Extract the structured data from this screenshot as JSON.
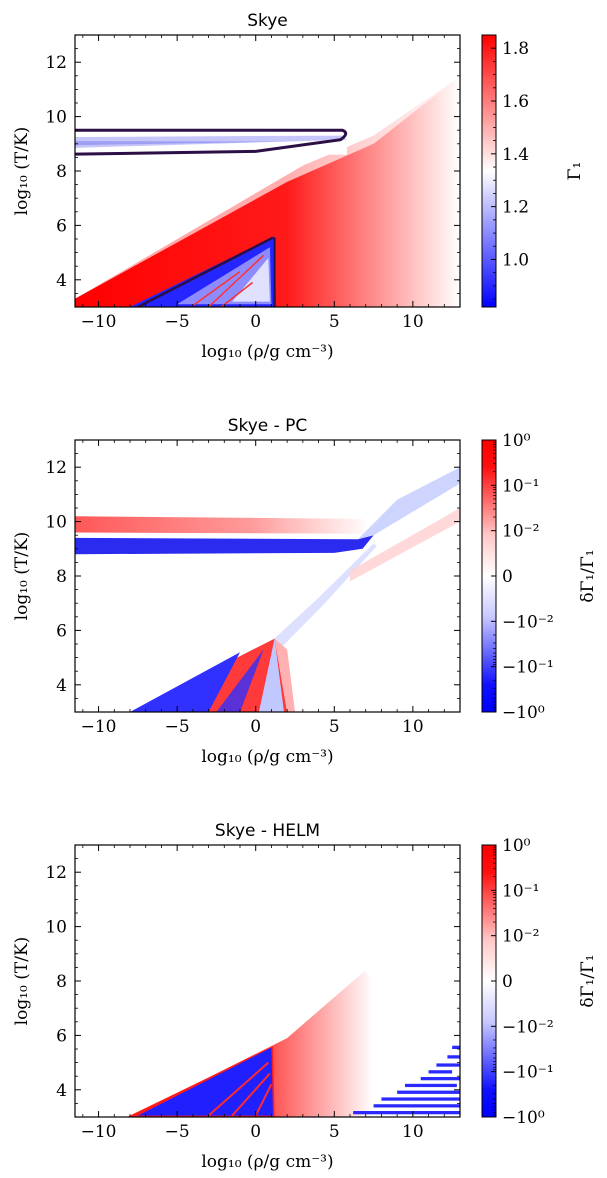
{
  "chart_data": [
    {
      "type": "heatmap",
      "title": "Skye",
      "xlabel": "log₁₀ (ρ/g cm⁻³)",
      "ylabel": "log₁₀ (T/K)",
      "xlim": [
        -11.5,
        13
      ],
      "ylim": [
        3,
        13
      ],
      "xticks": [
        -10,
        -5,
        0,
        5,
        10
      ],
      "xtick_labels": [
        "−10",
        "−5",
        "0",
        "5",
        "10"
      ],
      "yticks": [
        4,
        6,
        8,
        10,
        12
      ],
      "ytick_labels": [
        "4",
        "6",
        "8",
        "10",
        "12"
      ],
      "colorbar": {
        "label": "Γ₁",
        "scale": "linear",
        "range": [
          0.82,
          1.85
        ],
        "ticks": [
          1.0,
          1.2,
          1.4,
          1.6,
          1.8
        ],
        "tick_labels": [
          "1.0",
          "1.2",
          "1.4",
          "1.6",
          "1.8"
        ]
      },
      "features": [
        {
          "name": "ionization band",
          "x_range": [
            -11.5,
            5.8
          ],
          "y_range": [
            8.6,
            9.5
          ],
          "value": 1.1
        },
        {
          "name": "high Γ₁ wedge",
          "x_range": [
            -11.5,
            7.5
          ],
          "y_range": [
            3,
            8.5
          ],
          "value": 1.8
        },
        {
          "name": "low Γ₁ wedge",
          "x_range": [
            -8,
            1.5
          ],
          "y_range": [
            3,
            5.6
          ],
          "value": 0.9
        }
      ]
    },
    {
      "type": "heatmap",
      "title": "Skye - PC",
      "xlabel": "log₁₀ (ρ/g cm⁻³)",
      "ylabel": "log₁₀ (T/K)",
      "xlim": [
        -11.5,
        13
      ],
      "ylim": [
        3,
        13
      ],
      "xticks": [
        -10,
        -5,
        0,
        5,
        10
      ],
      "xtick_labels": [
        "−10",
        "−5",
        "0",
        "5",
        "10"
      ],
      "yticks": [
        4,
        6,
        8,
        10,
        12
      ],
      "ytick_labels": [
        "4",
        "6",
        "8",
        "10",
        "12"
      ],
      "colorbar": {
        "label": "δΓ₁/Γ₁",
        "scale": "symlog",
        "range": [
          -1,
          1
        ],
        "tick_labels": [
          "10⁰",
          "10⁻¹",
          "10⁻²",
          "0",
          "−10⁻²",
          "−10⁻¹",
          "−10⁰"
        ]
      },
      "features": [
        {
          "name": "positive band",
          "x_range": [
            -11.5,
            7.3
          ],
          "y_range": [
            9.6,
            10.2
          ],
          "value": 0.02
        },
        {
          "name": "negative band",
          "x_range": [
            -11.5,
            7.5
          ],
          "y_range": [
            8.8,
            9.4
          ],
          "value": -0.5
        },
        {
          "name": "low-T wedge",
          "x_range": [
            -8,
            2
          ],
          "y_range": [
            3,
            5.8
          ],
          "value": 0.3
        }
      ]
    },
    {
      "type": "heatmap",
      "title": "Skye - HELM",
      "xlabel": "log₁₀ (ρ/g cm⁻³)",
      "ylabel": "log₁₀ (T/K)",
      "xlim": [
        -11.5,
        13
      ],
      "ylim": [
        3,
        13
      ],
      "xticks": [
        -10,
        -5,
        0,
        5,
        10
      ],
      "xtick_labels": [
        "−10",
        "−5",
        "0",
        "5",
        "10"
      ],
      "yticks": [
        4,
        6,
        8,
        10,
        12
      ],
      "ytick_labels": [
        "4",
        "6",
        "8",
        "10",
        "12"
      ],
      "colorbar": {
        "label": "δΓ₁/Γ₁",
        "scale": "symlog",
        "range": [
          -1,
          1
        ],
        "tick_labels": [
          "10⁰",
          "10⁻¹",
          "10⁻²",
          "0",
          "−10⁻²",
          "−10⁻¹",
          "−10⁰"
        ]
      },
      "features": [
        {
          "name": "positive wedge",
          "x_range": [
            -8,
            7
          ],
          "y_range": [
            3,
            8.5
          ],
          "value": 0.05
        },
        {
          "name": "negative wedge",
          "x_range": [
            -7.5,
            1.2
          ],
          "y_range": [
            3,
            5.6
          ],
          "value": -0.5
        },
        {
          "name": "high-density streaks",
          "x_range": [
            6,
            13
          ],
          "y_range": [
            3,
            6
          ],
          "value": -0.5
        }
      ]
    }
  ]
}
